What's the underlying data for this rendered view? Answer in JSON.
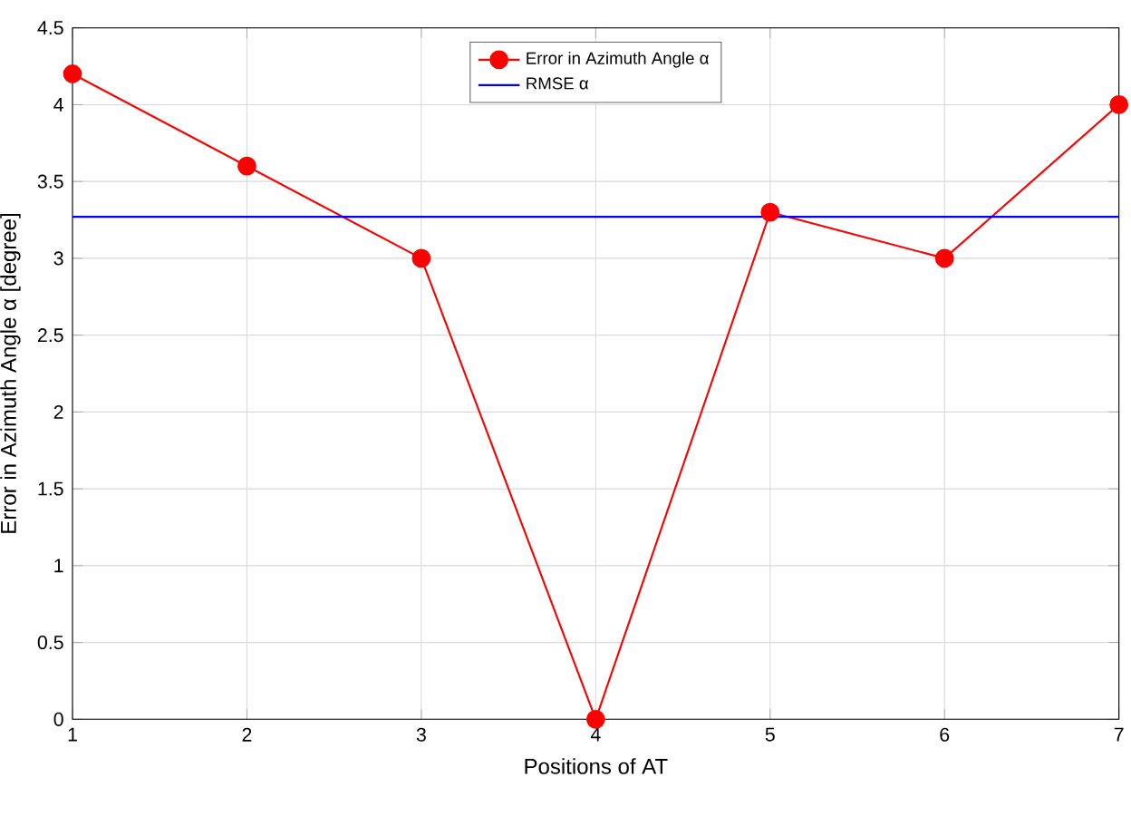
{
  "chart_data": {
    "type": "line",
    "xlabel": "Positions of AT",
    "ylabel": "Error in Azimuth Angle α [degree]",
    "xlim": [
      1,
      7
    ],
    "xticks": [
      1,
      2,
      3,
      4,
      5,
      6,
      7
    ],
    "ylim": [
      0,
      4.5
    ],
    "yticks": [
      0,
      0.5,
      1,
      1.5,
      2,
      2.5,
      3,
      3.5,
      4,
      4.5
    ],
    "grid": true,
    "legend": "top",
    "series": [
      {
        "name": "Error in Azimuth Angle α",
        "color": "#ff0000",
        "marker": "circle",
        "x": [
          1,
          2,
          3,
          4,
          5,
          6,
          7
        ],
        "values": [
          4.2,
          3.6,
          3.0,
          0,
          3.3,
          3.0,
          4.0
        ]
      },
      {
        "name": "RMSE α",
        "color": "#0000ff",
        "marker": "none",
        "x": [
          1,
          7
        ],
        "values": [
          3.27,
          3.27
        ]
      }
    ]
  }
}
